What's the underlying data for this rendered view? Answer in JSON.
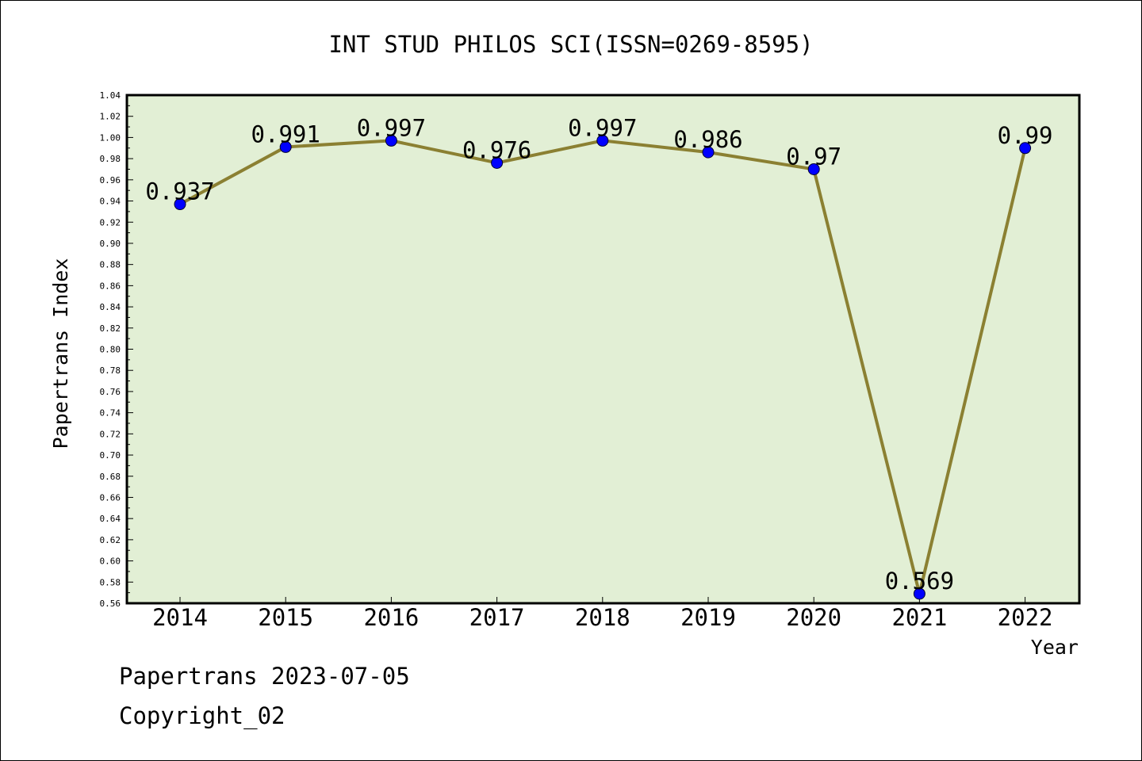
{
  "chart_data": {
    "type": "line",
    "title": "INT STUD PHILOS SCI(ISSN=0269-8595)",
    "xlabel": "Year",
    "ylabel": "Papertrans Index",
    "categories": [
      "2014",
      "2015",
      "2016",
      "2017",
      "2018",
      "2019",
      "2020",
      "2021",
      "2022"
    ],
    "values": [
      0.937,
      0.991,
      0.997,
      0.976,
      0.997,
      0.986,
      0.97,
      0.569,
      0.99
    ],
    "data_labels": [
      "0.937",
      "0.991",
      "0.997",
      "0.976",
      "0.997",
      "0.986",
      "0.97",
      "0.569",
      "0.99"
    ],
    "ylim": [
      0.56,
      1.04
    ],
    "yticks": [
      "0.56",
      "0.58",
      "0.60",
      "0.62",
      "0.64",
      "0.66",
      "0.68",
      "0.70",
      "0.72",
      "0.74",
      "0.76",
      "0.78",
      "0.80",
      "0.82",
      "0.84",
      "0.86",
      "0.88",
      "0.90",
      "0.92",
      "0.94",
      "0.96",
      "0.98",
      "1.00",
      "1.02",
      "1.04"
    ],
    "grid": false,
    "colors": {
      "plot_bg": "#e2efd5",
      "line": "#8b8032",
      "marker": "#0000ff"
    }
  },
  "footer": {
    "line1": "Papertrans 2023-07-05",
    "line2": "Copyright_02"
  }
}
